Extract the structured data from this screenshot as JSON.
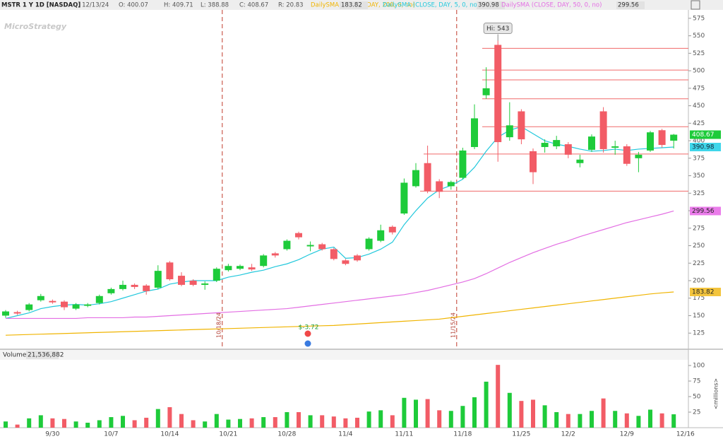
{
  "chart_data": {
    "type": "candlestick",
    "watermark": "MicroStrategy",
    "header": [
      "MSTR 1 Y 1D [NASDAQ]",
      "D: 12/13/24",
      "O: 400.07",
      "H: 409.71",
      "L: 388.88",
      "C: 408.67",
      "R: 20.83"
    ],
    "categories": [
      null,
      null,
      null,
      null,
      "9/30",
      null,
      null,
      null,
      null,
      "10/7",
      null,
      null,
      null,
      null,
      "10/14",
      null,
      null,
      null,
      null,
      "10/21",
      null,
      null,
      null,
      null,
      "10/28",
      null,
      null,
      null,
      null,
      "11/4",
      null,
      null,
      null,
      null,
      "11/11",
      null,
      null,
      null,
      null,
      "11/18",
      null,
      null,
      null,
      null,
      "11/25",
      null,
      null,
      null,
      "12/2",
      null,
      null,
      null,
      null,
      "12/9",
      null,
      null,
      null,
      null,
      "12/16"
    ],
    "open": [
      150,
      155,
      158,
      172,
      171,
      170,
      160,
      164,
      168,
      182,
      188,
      194,
      193,
      190,
      226,
      207,
      200,
      194,
      200,
      215,
      217,
      219,
      221,
      239,
      245,
      268,
      249,
      252,
      245,
      229,
      236,
      245,
      257,
      277,
      296,
      335,
      368,
      342,
      335,
      347,
      391,
      465,
      537,
      405,
      442,
      385,
      391,
      392,
      395,
      368,
      387,
      442,
      390,
      392,
      375,
      386,
      415,
      400.07,
      null
    ],
    "high": [
      158,
      157,
      168,
      181,
      173,
      172,
      168,
      168,
      180,
      190,
      200,
      196,
      195,
      222,
      228,
      212,
      202,
      199,
      219,
      224,
      223,
      224,
      238,
      241,
      259,
      270,
      256,
      254,
      247,
      231,
      238,
      262,
      280,
      279,
      346,
      368,
      393,
      345,
      343,
      390,
      452,
      505,
      543,
      455,
      445,
      389,
      402,
      407,
      398,
      380,
      409,
      448,
      400,
      395,
      384,
      414,
      417,
      409.71,
      null
    ],
    "low": [
      147,
      151,
      156,
      170,
      167,
      158,
      158,
      162,
      166,
      180,
      186,
      188,
      180,
      188,
      200,
      192,
      192,
      187,
      198,
      213,
      215,
      214,
      219,
      233,
      243,
      259,
      242,
      243,
      229,
      222,
      227,
      243,
      255,
      266,
      294,
      333,
      325,
      318,
      330,
      345,
      388,
      460,
      370,
      400,
      395,
      338,
      383,
      388,
      375,
      362,
      384,
      383,
      380,
      364,
      355,
      384,
      390,
      388.88,
      null
    ],
    "close": [
      156,
      153,
      166,
      178,
      169,
      162,
      166,
      166,
      178,
      188,
      194,
      191,
      185,
      214,
      202,
      194,
      194,
      196,
      217,
      221,
      221,
      216,
      236,
      236,
      257,
      262,
      251,
      245,
      231,
      224,
      229,
      260,
      272,
      269,
      340,
      358,
      328,
      327,
      341,
      386,
      432,
      475,
      398,
      422,
      402,
      355,
      397,
      401,
      380,
      373,
      406,
      388,
      392,
      367,
      380,
      412,
      394,
      408.67,
      null
    ],
    "up_color": "#1ecb3a",
    "down_color": "#f25c66",
    "series": [
      {
        "name": "DailySMA (CLOSE, DAY, 200, 0, no)",
        "color": "#f0b400",
        "values": [
          122,
          122.5,
          123,
          123.5,
          124,
          124.5,
          125,
          125.5,
          126,
          126.5,
          127,
          127.5,
          128,
          128.5,
          129,
          129.5,
          130,
          130.5,
          131,
          131.5,
          132,
          132.5,
          133,
          133.5,
          134,
          134.5,
          135,
          135.5,
          136,
          137,
          138,
          139,
          140,
          141,
          142,
          143,
          144,
          145,
          147,
          149,
          151,
          153,
          155,
          157,
          159,
          161,
          163,
          165,
          167,
          169,
          171,
          173,
          175,
          177,
          179,
          181,
          182.5,
          183.82,
          null
        ]
      },
      {
        "name": "DailySMA (CLOSE, DAY, 5, 0, no)",
        "color": "#22c8dc",
        "values": [
          146,
          150,
          154,
          160,
          163,
          165,
          166,
          165,
          167,
          170,
          175,
          180,
          185,
          188,
          195,
          198,
          200,
          200,
          200,
          205,
          208,
          212,
          215,
          220,
          224,
          230,
          238,
          245,
          248,
          232,
          233,
          238,
          245,
          255,
          280,
          300,
          318,
          330,
          336,
          345,
          362,
          385,
          405,
          415,
          420,
          410,
          400,
          395,
          392,
          388,
          385,
          386,
          388,
          386,
          388,
          389,
          390,
          390.98,
          null
        ]
      },
      {
        "name": "DailySMA (CLOSE, DAY, 50, 0, no)",
        "color": "#e36ee3",
        "values": [
          146,
          146,
          146,
          146,
          146,
          146,
          146,
          147,
          147,
          147,
          147,
          148,
          148,
          149,
          150,
          151,
          152,
          153,
          154,
          155,
          156,
          157,
          158,
          159,
          160,
          162,
          164,
          166,
          168,
          170,
          172,
          174,
          176,
          178,
          180,
          183,
          186,
          190,
          194,
          198,
          203,
          210,
          218,
          226,
          233,
          240,
          246,
          252,
          257,
          263,
          268,
          273,
          278,
          283,
          287,
          291,
          295,
          299.56,
          null
        ]
      }
    ],
    "ylim": [
      103,
      587
    ],
    "yticks": [
      125,
      150,
      175,
      200,
      225,
      250,
      275,
      300,
      325,
      350,
      375,
      400,
      425,
      450,
      475,
      500,
      525,
      550,
      575
    ],
    "levels": [
      532,
      501,
      487,
      460,
      420,
      381,
      328
    ],
    "markers": [
      "10/18/24",
      "11/15/24"
    ],
    "annotations": [
      "Hi: 543",
      "$-3.72"
    ],
    "volume": {
      "name": "Volume",
      "total_label": "21,536,882",
      "axis_label": "<millions>",
      "values": [
        10,
        5,
        15,
        20,
        15,
        14,
        10,
        8,
        12,
        17,
        19,
        12,
        16,
        30,
        33,
        22,
        12,
        10,
        22,
        13,
        14,
        15,
        17,
        17,
        25,
        25,
        20,
        20,
        18,
        15,
        16,
        26,
        28,
        20,
        48,
        45,
        46,
        28,
        27,
        35,
        49,
        74,
        101,
        56,
        43,
        45,
        36,
        25,
        22,
        22,
        27,
        47,
        27,
        23,
        19,
        29,
        23,
        21.54,
        null
      ],
      "ylim": [
        0,
        108
      ],
      "yticks": [
        25,
        50,
        75,
        100
      ]
    }
  }
}
